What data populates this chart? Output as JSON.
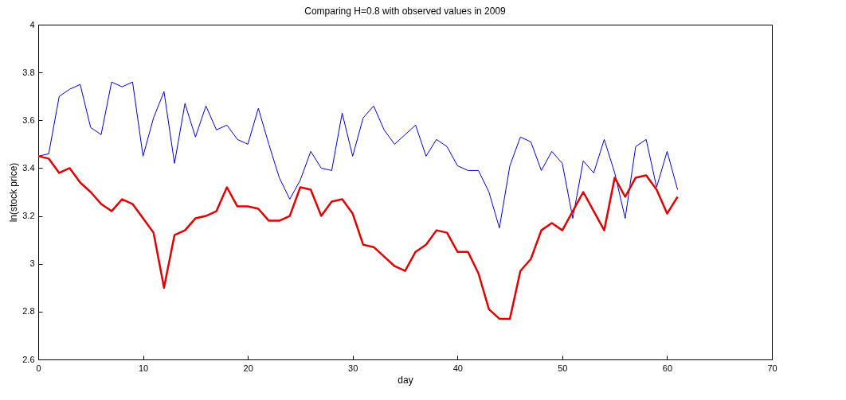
{
  "chart_data": {
    "type": "line",
    "title": "Comparing H=0.8 with observed values in 2009",
    "xlabel": "day",
    "ylabel": "ln(stock price)",
    "x": [
      0,
      1,
      2,
      3,
      4,
      5,
      6,
      7,
      8,
      9,
      10,
      11,
      12,
      13,
      14,
      15,
      16,
      17,
      18,
      19,
      20,
      21,
      22,
      23,
      24,
      25,
      26,
      27,
      28,
      29,
      30,
      31,
      32,
      33,
      34,
      35,
      36,
      37,
      38,
      39,
      40,
      41,
      42,
      43,
      44,
      45,
      46,
      47,
      48,
      49,
      50,
      51,
      52,
      53,
      54,
      55,
      56,
      57,
      58,
      59,
      60,
      61
    ],
    "xlim": [
      0,
      70
    ],
    "xticks": [
      0,
      10,
      20,
      30,
      40,
      50,
      60,
      70
    ],
    "ylim": [
      2.6,
      4
    ],
    "yticks": [
      2.6,
      2.8,
      3,
      3.2,
      3.4,
      3.6,
      3.8,
      4
    ],
    "grid": false,
    "legend": false,
    "series": [
      {
        "color": "#0000cc",
        "values": [
          3.45,
          3.46,
          3.7,
          3.73,
          3.75,
          3.57,
          3.54,
          3.76,
          3.74,
          3.76,
          3.45,
          3.61,
          3.72,
          3.42,
          3.67,
          3.53,
          3.66,
          3.56,
          3.58,
          3.52,
          3.5,
          3.65,
          3.5,
          3.36,
          3.27,
          3.35,
          3.47,
          3.4,
          3.39,
          3.63,
          3.45,
          3.61,
          3.66,
          3.56,
          3.5,
          3.54,
          3.58,
          3.45,
          3.52,
          3.49,
          3.41,
          3.39,
          3.39,
          3.3,
          3.15,
          3.41,
          3.53,
          3.51,
          3.39,
          3.47,
          3.42,
          3.19,
          3.43,
          3.38,
          3.52,
          3.38,
          3.19,
          3.49,
          3.52,
          3.32,
          3.47,
          3.31
        ]
      },
      {
        "color": "#e00000",
        "values": [
          3.45,
          3.44,
          3.38,
          3.4,
          3.34,
          3.3,
          3.25,
          3.22,
          3.27,
          3.25,
          3.19,
          3.13,
          2.9,
          3.12,
          3.14,
          3.19,
          3.2,
          3.22,
          3.32,
          3.24,
          3.24,
          3.23,
          3.18,
          3.18,
          3.2,
          3.32,
          3.31,
          3.2,
          3.26,
          3.27,
          3.21,
          3.08,
          3.07,
          3.03,
          2.99,
          2.97,
          3.05,
          3.08,
          3.14,
          3.13,
          3.05,
          3.05,
          2.96,
          2.81,
          2.77,
          2.77,
          2.97,
          3.02,
          3.14,
          3.17,
          3.14,
          3.22,
          3.3,
          3.22,
          3.14,
          3.36,
          3.28,
          3.36,
          3.37,
          3.31,
          3.21,
          3.28
        ]
      }
    ]
  }
}
